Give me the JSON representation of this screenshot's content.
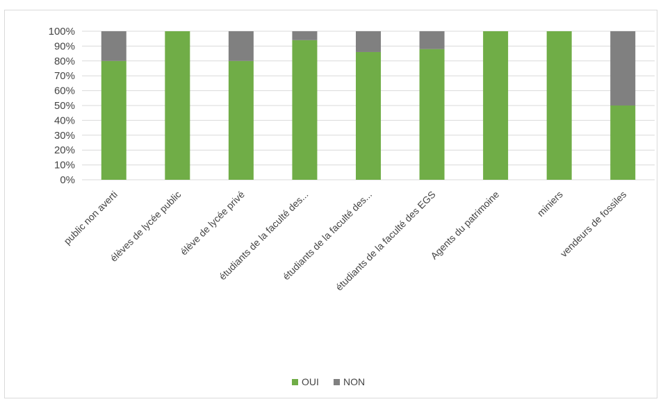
{
  "chart_data": {
    "type": "bar",
    "stacked": true,
    "percent_stacked": true,
    "categories": [
      "public non averti",
      "élèves de lycée public",
      "élève de lycée privé",
      "étudiants de la faculté des...",
      "étudiants de la faculté des...",
      "étudiants de la faculté des EGS",
      "Agents du patrimoine",
      "miniers",
      "vendeurs de fossiles"
    ],
    "series": [
      {
        "name": "OUI",
        "color": "#70ad47",
        "values": [
          80,
          100,
          80,
          94,
          86,
          88,
          100,
          100,
          50
        ]
      },
      {
        "name": "NON",
        "color": "#808080",
        "values": [
          20,
          0,
          20,
          6,
          14,
          12,
          0,
          0,
          50
        ]
      }
    ],
    "ylim": [
      0,
      100
    ],
    "yticks": [
      "0%",
      "10%",
      "20%",
      "30%",
      "40%",
      "50%",
      "60%",
      "70%",
      "80%",
      "90%",
      "100%"
    ],
    "grid": true,
    "legend_position": "bottom",
    "title": "",
    "xlabel": "",
    "ylabel": ""
  }
}
